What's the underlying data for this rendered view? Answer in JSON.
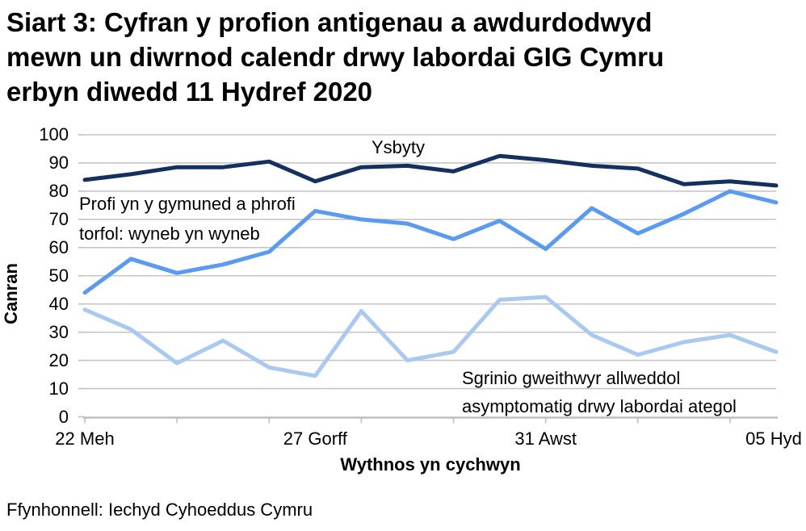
{
  "title_lines": [
    "Siart 3: Cyfran y profion antigenau a awdurdodwyd",
    "mewn un diwrnod calendr drwy labordai GIG Cymru",
    "erbyn diwedd 11 Hydref 2020"
  ],
  "source": "Ffynhonnell: Iechyd Cyhoeddus Cymru",
  "chart_data": {
    "type": "line",
    "title": "Siart 3: Cyfran y profion antigenau a awdurdodwyd mewn un diwrnod calendr drwy labordai GIG Cymru erbyn diwedd 11 Hydref 2020",
    "xlabel": "Wythnos yn cychwyn",
    "ylabel": "Canran",
    "ylim": [
      0,
      100
    ],
    "yticks": [
      0,
      10,
      20,
      30,
      40,
      50,
      60,
      70,
      80,
      90,
      100
    ],
    "grid": "horizontal-only",
    "legend": "inline-annotations",
    "x": [
      0,
      1,
      2,
      3,
      4,
      5,
      6,
      7,
      8,
      9,
      10,
      11,
      12,
      13,
      14,
      15
    ],
    "x_unit": "week-index (weekly points)",
    "x_tick_marks": [
      0,
      2,
      4,
      6,
      8,
      10,
      12,
      14
    ],
    "x_tick_labels": [
      {
        "pos": 0,
        "label": "22 Meh"
      },
      {
        "pos": 5,
        "label": "27 Gorff"
      },
      {
        "pos": 10,
        "label": "31 Awst"
      },
      {
        "pos": 15,
        "label": "05 Hyd"
      }
    ],
    "series": [
      {
        "id": "ysbyty",
        "name": "Ysbyty",
        "color": "#14305F",
        "values": [
          84,
          86,
          88.5,
          88.5,
          90.5,
          83.5,
          88.5,
          89,
          87,
          92.5,
          91,
          89,
          88,
          82.5,
          83.5,
          82
        ]
      },
      {
        "id": "community",
        "name": "Profi yn y gymuned a phrofi torfol: wyneb yn wyneb",
        "color": "#5A9AF0",
        "values": [
          44,
          56,
          51,
          54,
          58.5,
          73,
          70,
          68.5,
          63,
          69.5,
          59.5,
          74,
          65,
          72,
          80,
          76
        ]
      },
      {
        "id": "screening",
        "name": "Sgrinio gweithwyr allweddol asymptomatig drwy labordai ategol",
        "color": "#A9C9F1",
        "values": [
          38,
          31,
          19,
          27,
          17.5,
          14.5,
          37.5,
          20,
          23,
          41.5,
          42.5,
          29,
          22,
          26.5,
          29,
          23
        ]
      }
    ],
    "annotations": {
      "hospital": {
        "line1": "Ysbyty"
      },
      "community": {
        "line1": "Profi yn y gymuned a phrofi",
        "line2": "torfol: wyneb yn wyneb"
      },
      "screening": {
        "line1": "Sgrinio gweithwyr allweddol",
        "line2": "asymptomatig drwy labordai ategol"
      }
    },
    "colors": {
      "gridline": "#C6C6C6",
      "axis": "#BFBFBF",
      "text": "#000000"
    }
  }
}
